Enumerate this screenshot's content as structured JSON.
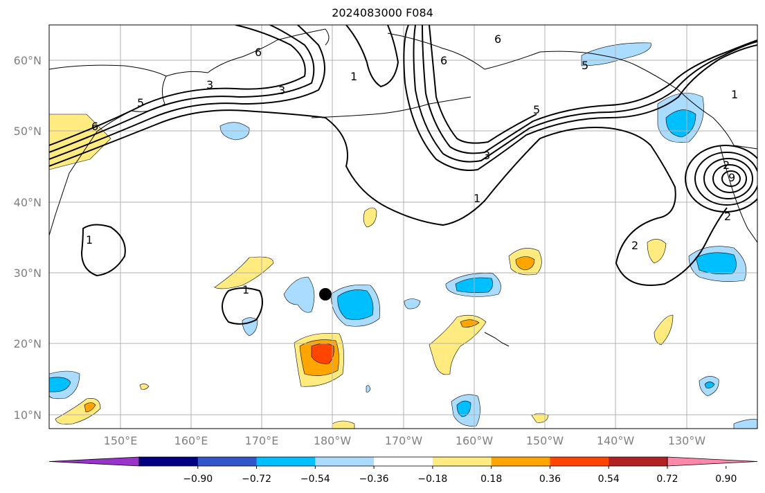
{
  "title": "2024083000 F084",
  "lat_labels": [
    "60°N",
    "50°N",
    "40°N",
    "30°N",
    "20°N",
    "10°N"
  ],
  "lon_labels": [
    "150°E",
    "160°E",
    "170°E",
    "180°W",
    "170°W",
    "160°W",
    "150°W",
    "140°W",
    "130°W"
  ],
  "colorbar": {
    "colors": [
      "#9933cc",
      "#000080",
      "#3355cc",
      "#00bfff",
      "#aadcff",
      "#ffffff",
      "#ffeb80",
      "#ffa500",
      "#ff4500",
      "#b22222",
      "#ff88aa"
    ],
    "tick_labels": [
      "−0.90",
      "−0.72",
      "−0.54",
      "−0.36",
      "−0.18",
      "0.18",
      "0.36",
      "0.54",
      "0.72",
      "0.90"
    ]
  },
  "contour_labels": [
    "6",
    "6",
    "6",
    "5",
    "5",
    "5",
    "3",
    "3",
    "3",
    "1",
    "1",
    "1",
    "1",
    "1",
    "2",
    "2",
    "2",
    "9",
    "6"
  ],
  "marker": "black dot near 27°N 179°W"
}
